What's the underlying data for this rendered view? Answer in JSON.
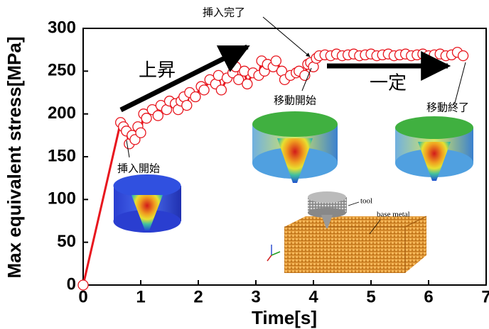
{
  "chart_data": {
    "type": "line",
    "x_label": "Time[s]",
    "y_label": "Max equivalent stress[MPa]",
    "xlim": [
      0,
      7
    ],
    "ylim": [
      0,
      300
    ],
    "xticks": [
      0,
      1,
      2,
      3,
      4,
      5,
      6,
      7
    ],
    "yticks": [
      0,
      50,
      100,
      150,
      200,
      250,
      300
    ],
    "color": "#e8161e",
    "x": [
      0,
      0.65,
      0.7,
      0.75,
      0.8,
      0.85,
      0.9,
      0.95,
      1.0,
      1.05,
      1.1,
      1.2,
      1.3,
      1.35,
      1.45,
      1.5,
      1.6,
      1.65,
      1.7,
      1.75,
      1.8,
      1.85,
      1.95,
      2.05,
      2.1,
      2.2,
      2.3,
      2.35,
      2.4,
      2.5,
      2.6,
      2.65,
      2.7,
      2.8,
      2.85,
      2.95,
      3.05,
      3.1,
      3.15,
      3.2,
      3.3,
      3.35,
      3.45,
      3.5,
      3.6,
      3.7,
      3.75,
      3.85,
      3.9,
      3.95,
      4.0,
      4.05,
      4.1,
      4.2,
      4.3,
      4.4,
      4.5,
      4.6,
      4.7,
      4.8,
      4.9,
      5.0,
      5.1,
      5.2,
      5.3,
      5.4,
      5.5,
      5.6,
      5.7,
      5.8,
      5.9,
      6.0,
      6.1,
      6.2,
      6.3,
      6.4,
      6.5,
      6.6
    ],
    "values": [
      0,
      190,
      185,
      180,
      165,
      175,
      170,
      185,
      178,
      200,
      195,
      205,
      198,
      210,
      205,
      215,
      212,
      205,
      215,
      220,
      210,
      225,
      220,
      232,
      228,
      240,
      235,
      245,
      228,
      242,
      248,
      255,
      240,
      250,
      235,
      248,
      245,
      262,
      250,
      258,
      255,
      262,
      250,
      240,
      245,
      248,
      250,
      245,
      258,
      260,
      255,
      265,
      268,
      269,
      268,
      270,
      268,
      269,
      270,
      268,
      269,
      270,
      268,
      269,
      270,
      268,
      269,
      270,
      268,
      269,
      270,
      268,
      269,
      270,
      268,
      269,
      272,
      268
    ],
    "annotations": {
      "rise": "上昇",
      "constant": "一定",
      "insert_start": "挿入開始",
      "insert_end": "挿入完了",
      "move_start": "移動開始",
      "move_end": "移動終了",
      "tool": "tool",
      "base_metal": "base metal"
    }
  }
}
